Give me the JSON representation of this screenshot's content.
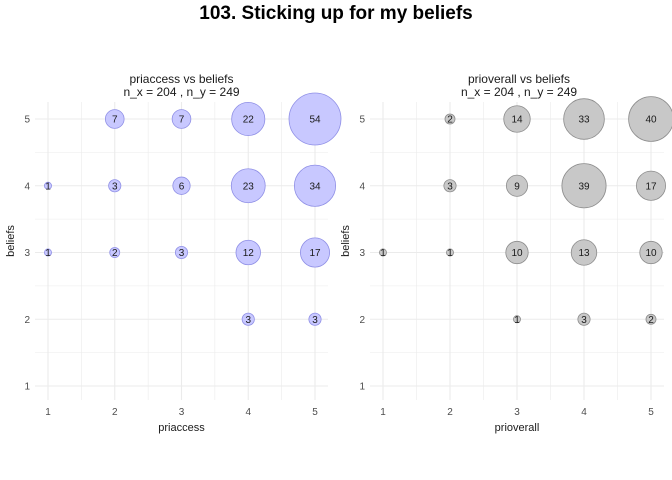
{
  "title": "103. Sticking up for my beliefs",
  "colors": {
    "panel1_fill": "#c8c8ff",
    "panel1_stroke": "#8f8fe6",
    "panel2_fill": "#c8c8c8",
    "panel2_stroke": "#8c8c8c",
    "grid": "#ebebeb"
  },
  "chart_data": [
    {
      "type": "scatter",
      "title": "priaccess vs beliefs",
      "subtitle": "n_x = 204 , n_y = 249",
      "xlabel": "priaccess",
      "ylabel": "beliefs",
      "x_ticks": [
        1,
        2,
        3,
        4,
        5
      ],
      "y_ticks": [
        1,
        2,
        3,
        4,
        5
      ],
      "xlim": [
        0.5,
        5.2
      ],
      "ylim": [
        0.8,
        5.2
      ],
      "grid": true,
      "points": [
        {
          "x": 2,
          "y": 5,
          "count": 7
        },
        {
          "x": 3,
          "y": 5,
          "count": 7
        },
        {
          "x": 4,
          "y": 5,
          "count": 22
        },
        {
          "x": 5,
          "y": 5,
          "count": 54
        },
        {
          "x": 1,
          "y": 4,
          "count": 1
        },
        {
          "x": 2,
          "y": 4,
          "count": 3
        },
        {
          "x": 3,
          "y": 4,
          "count": 6
        },
        {
          "x": 4,
          "y": 4,
          "count": 23
        },
        {
          "x": 5,
          "y": 4,
          "count": 34
        },
        {
          "x": 1,
          "y": 3,
          "count": 1
        },
        {
          "x": 2,
          "y": 3,
          "count": 2
        },
        {
          "x": 3,
          "y": 3,
          "count": 3
        },
        {
          "x": 4,
          "y": 3,
          "count": 12
        },
        {
          "x": 5,
          "y": 3,
          "count": 17
        },
        {
          "x": 4,
          "y": 2,
          "count": 3
        },
        {
          "x": 5,
          "y": 2,
          "count": 3
        }
      ]
    },
    {
      "type": "scatter",
      "title": "prioverall vs beliefs",
      "subtitle": "n_x = 204 , n_y = 249",
      "xlabel": "prioverall",
      "ylabel": "beliefs",
      "x_ticks": [
        1,
        2,
        3,
        4,
        5
      ],
      "y_ticks": [
        1,
        2,
        3,
        4,
        5
      ],
      "xlim": [
        0.5,
        5.2
      ],
      "ylim": [
        0.8,
        5.2
      ],
      "grid": true,
      "points": [
        {
          "x": 2,
          "y": 5,
          "count": 2
        },
        {
          "x": 3,
          "y": 5,
          "count": 14
        },
        {
          "x": 4,
          "y": 5,
          "count": 33
        },
        {
          "x": 5,
          "y": 5,
          "count": 40
        },
        {
          "x": 2,
          "y": 4,
          "count": 3
        },
        {
          "x": 3,
          "y": 4,
          "count": 9
        },
        {
          "x": 4,
          "y": 4,
          "count": 39
        },
        {
          "x": 5,
          "y": 4,
          "count": 17
        },
        {
          "x": 1,
          "y": 3,
          "count": 1
        },
        {
          "x": 2,
          "y": 3,
          "count": 1
        },
        {
          "x": 3,
          "y": 3,
          "count": 10
        },
        {
          "x": 4,
          "y": 3,
          "count": 13
        },
        {
          "x": 5,
          "y": 3,
          "count": 10
        },
        {
          "x": 3,
          "y": 2,
          "count": 1
        },
        {
          "x": 4,
          "y": 2,
          "count": 3
        },
        {
          "x": 5,
          "y": 2,
          "count": 2
        }
      ]
    }
  ]
}
